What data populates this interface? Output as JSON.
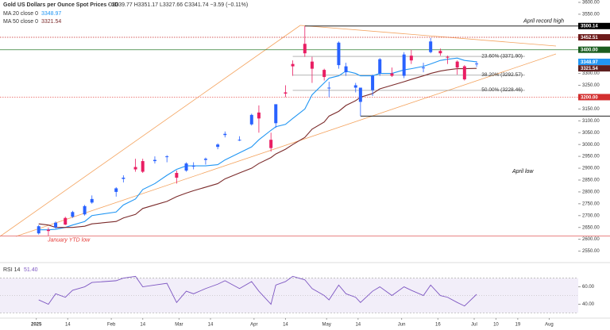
{
  "header": {
    "title": "Gold US Dollars per Ounce Spot Prices · 1D",
    "ohlc": "O3339.77 H3351.17 L3327.66 C3341.74 −3.59 (−0.11%)",
    "ma20": "MA 20 close 0",
    "ma20_value": "3348.97",
    "ma50": "MA 50 close 0",
    "ma50_value": "3321.54",
    "rsi": "RSI 14",
    "rsi_value": "51.40"
  },
  "chart_data": [
    {
      "type": "candlestick",
      "up_color": "#2962ff",
      "down_color": "#e91e63",
      "x": [
        "2025-01-02",
        "2025-01-06",
        "2025-01-09",
        "2025-01-13",
        "2025-01-16",
        "2025-01-21",
        "2025-01-24",
        "2025-02-03",
        "2025-02-06",
        "2025-02-11",
        "2025-02-14",
        "2025-02-19",
        "2025-02-24",
        "2025-02-28",
        "2025-03-04",
        "2025-03-07",
        "2025-03-12",
        "2025-03-17",
        "2025-03-20",
        "2025-03-26",
        "2025-03-31",
        "2025-04-03",
        "2025-04-08",
        "2025-04-10",
        "2025-04-14",
        "2025-04-17",
        "2025-04-22",
        "2025-04-25",
        "2025-04-30",
        "2025-05-02",
        "2025-05-06",
        "2025-05-09",
        "2025-05-13",
        "2025-05-15",
        "2025-05-20",
        "2025-05-23",
        "2025-05-28",
        "2025-06-02",
        "2025-06-05",
        "2025-06-10",
        "2025-06-13",
        "2025-06-17",
        "2025-06-20",
        "2025-06-24",
        "2025-06-27",
        "2025-07-02"
      ],
      "open": [
        2625,
        2640,
        2650,
        2690,
        2695,
        2705,
        2755,
        2800,
        2855,
        2905,
        2930,
        2930,
        2950,
        2880,
        2890,
        2910,
        2935,
        2990,
        3040,
        3020,
        3085,
        3135,
        3020,
        3090,
        3220,
        3340,
        3425,
        3350,
        3315,
        3240,
        3335,
        3305,
        3240,
        3180,
        3230,
        3300,
        3300,
        3290,
        3375,
        3325,
        3390,
        3395,
        3370,
        3350,
        3330,
        3339.77
      ],
      "high": [
        2660,
        2650,
        2675,
        2695,
        2720,
        2745,
        2785,
        2820,
        2870,
        2940,
        2940,
        2950,
        2955,
        2890,
        2925,
        2925,
        2945,
        3005,
        3055,
        3035,
        3130,
        3165,
        3050,
        3170,
        3250,
        3355,
        3500,
        3370,
        3320,
        3265,
        3435,
        3345,
        3260,
        3240,
        3295,
        3365,
        3325,
        3390,
        3400,
        3345,
        3450,
        3405,
        3375,
        3355,
        3335,
        3351.17
      ],
      "low": [
        2620,
        2615,
        2645,
        2660,
        2690,
        2700,
        2750,
        2780,
        2840,
        2885,
        2880,
        2920,
        2925,
        2835,
        2885,
        2895,
        2915,
        2980,
        3030,
        3015,
        3080,
        3050,
        2970,
        3070,
        3200,
        3290,
        3370,
        3260,
        3270,
        3200,
        3320,
        3290,
        3220,
        3120,
        3205,
        3290,
        3285,
        3280,
        3340,
        3305,
        3385,
        3375,
        3340,
        3295,
        3270,
        3327.66
      ],
      "close": [
        2655,
        2635,
        2670,
        2662,
        2715,
        2740,
        2770,
        2815,
        2860,
        2895,
        2885,
        2935,
        2950,
        2860,
        2920,
        2910,
        2940,
        3000,
        3045,
        3020,
        3125,
        3110,
        2985,
        3170,
        3215,
        3330,
        3385,
        3320,
        3285,
        3240,
        3430,
        3330,
        3250,
        3240,
        3290,
        3360,
        3290,
        3380,
        3355,
        3325,
        3435,
        3385,
        3368,
        3325,
        3275,
        3341.74
      ],
      "series": [
        {
          "name": "MA 20",
          "color": "#2196f3",
          "values": [
            2640,
            2640,
            2642,
            2650,
            2660,
            2675,
            2700,
            2715,
            2745,
            2770,
            2810,
            2835,
            2870,
            2895,
            2910,
            2910,
            2910,
            2915,
            2935,
            2965,
            2990,
            3020,
            3060,
            3075,
            3085,
            3110,
            3150,
            3210,
            3260,
            3280,
            3290,
            3310,
            3300,
            3290,
            3290,
            3300,
            3300,
            3315,
            3320,
            3330,
            3340,
            3355,
            3360,
            3365,
            3355,
            3348.97
          ]
        },
        {
          "name": "MA 50",
          "color": "#7b2b2b",
          "values": [
            2665,
            2660,
            2650,
            2650,
            2650,
            2655,
            2665,
            2675,
            2690,
            2705,
            2730,
            2745,
            2760,
            2780,
            2795,
            2805,
            2820,
            2835,
            2855,
            2880,
            2900,
            2920,
            2945,
            2960,
            2980,
            3000,
            3030,
            3065,
            3095,
            3120,
            3140,
            3165,
            3185,
            3200,
            3215,
            3235,
            3250,
            3265,
            3275,
            3290,
            3300,
            3310,
            3315,
            3320,
            3320,
            3321.54
          ]
        }
      ],
      "xlim": [
        "2024-12-17",
        "2025-08-13"
      ],
      "xticks": [
        {
          "value": "2025-01-01",
          "label": "2025"
        },
        {
          "value": "2025-01-14",
          "label": "14"
        },
        {
          "value": "2025-02-01",
          "label": "Feb"
        },
        {
          "value": "2025-02-14",
          "label": "14"
        },
        {
          "value": "2025-03-01",
          "label": "Mar"
        },
        {
          "value": "2025-03-14",
          "label": "14"
        },
        {
          "value": "2025-04-01",
          "label": "Apr"
        },
        {
          "value": "2025-04-14",
          "label": "14"
        },
        {
          "value": "2025-05-01",
          "label": "May"
        },
        {
          "value": "2025-05-14",
          "label": "14"
        },
        {
          "value": "2025-06-01",
          "label": "Jun"
        },
        {
          "value": "2025-06-16",
          "label": "16"
        },
        {
          "value": "2025-07-01",
          "label": "Jul"
        },
        {
          "value": "2025-07-10",
          "label": "10"
        },
        {
          "value": "2025-07-19",
          "label": "19"
        },
        {
          "value": "2025-08-01",
          "label": "Aug"
        }
      ],
      "ylim": [
        2505,
        3610
      ],
      "yticks": [
        {
          "value": 3600,
          "label": "3600.00"
        },
        {
          "value": 3550,
          "label": "3550.00"
        },
        {
          "value": 3300,
          "label": "3300.00"
        },
        {
          "value": 3250,
          "label": "3250.00"
        },
        {
          "value": 3150,
          "label": "3150.00"
        },
        {
          "value": 3100,
          "label": "3100.00"
        },
        {
          "value": 3050,
          "label": "3050.00"
        },
        {
          "value": 3000,
          "label": "3000.00"
        },
        {
          "value": 2950,
          "label": "2950.00"
        },
        {
          "value": 2900,
          "label": "2900.00"
        },
        {
          "value": 2850,
          "label": "2850.00"
        },
        {
          "value": 2800,
          "label": "2800.00"
        },
        {
          "value": 2750,
          "label": "2750.00"
        },
        {
          "value": 2700,
          "label": "2700.00"
        },
        {
          "value": 2650,
          "label": "2650.00"
        },
        {
          "value": 2600,
          "label": "2600.00"
        },
        {
          "value": 2550,
          "label": "2550.00"
        }
      ],
      "levels": [
        {
          "value": 3500.14,
          "from": "2025-04-22",
          "color": "#000000",
          "style": "solid",
          "tag": "3500.14",
          "text": "April record high"
        },
        {
          "value": 3452.51,
          "from": "2024-12-17",
          "color": "#c62828",
          "style": "dotted",
          "tag": "3452.51",
          "tag_color": "#6d1b1b"
        },
        {
          "value": 3400,
          "from": "2024-12-17",
          "color": "#2e7d32",
          "style": "solid",
          "tag": "3400.00",
          "tag_color": "#1b5e20"
        },
        {
          "value": 3348.97,
          "tag": "3348.97",
          "tag_color": "#2196f3"
        },
        {
          "value": 3321.54,
          "tag": "3321.54",
          "tag_color": "#5d1f1f"
        },
        {
          "value": 3200,
          "from": "2024-12-17",
          "color": "#e53935",
          "style": "dotted",
          "tag": "3200.00",
          "tag_color": "#d32f2f"
        },
        {
          "value": 3120,
          "from": "2025-05-15",
          "color": "#000000",
          "style": "solid",
          "text": "April low"
        },
        {
          "value": 2614,
          "from": "2024-12-17",
          "color": "#e57373",
          "style": "solid",
          "text": "January YTD low",
          "text_color": "#e53935"
        }
      ],
      "fib": [
        {
          "value": 3371.9,
          "text": "23.60% (3371.90)"
        },
        {
          "value": 3292.57,
          "text": "38.20% (3292.57)"
        },
        {
          "value": 3228.46,
          "text": "50.00% (3228.46)"
        }
      ],
      "fib_from": "2025-04-17",
      "fib_to": "2025-07-22"
    },
    {
      "type": "line",
      "name": "RSI",
      "color": "#7e57c2",
      "values": [
        45,
        40,
        52,
        48,
        56,
        60,
        65,
        67,
        70,
        72,
        60,
        62,
        64,
        42,
        55,
        52,
        58,
        63,
        67,
        58,
        66,
        55,
        40,
        62,
        66,
        72,
        68,
        58,
        50,
        45,
        62,
        52,
        48,
        42,
        55,
        60,
        50,
        60,
        56,
        50,
        62,
        50,
        48,
        42,
        38,
        51.4
      ],
      "ylim": [
        25,
        86
      ],
      "yticks": [
        {
          "value": 60,
          "label": "60.00"
        },
        {
          "value": 40,
          "label": "40.00"
        }
      ],
      "band": [
        30,
        70
      ],
      "midline": 50
    }
  ]
}
